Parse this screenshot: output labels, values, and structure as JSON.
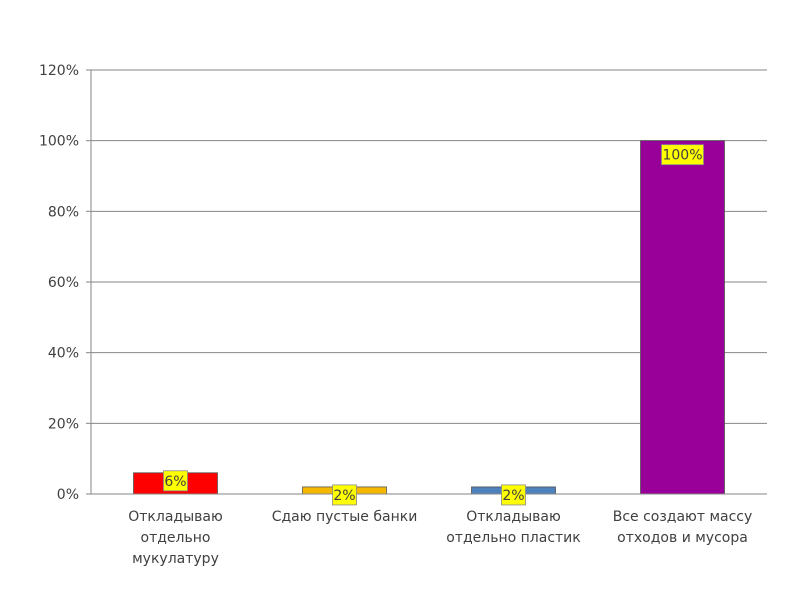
{
  "chart_data": {
    "type": "bar",
    "categories": [
      [
        "Откладываю",
        "отдельно",
        "мукулатуру"
      ],
      [
        "Сдаю пустые банки"
      ],
      [
        "Откладываю",
        "отдельно пластик"
      ],
      [
        "Все создают массу",
        "отходов и мусора"
      ]
    ],
    "values": [
      6,
      2,
      2,
      100
    ],
    "data_labels": [
      "6%",
      "2%",
      "2%",
      "100%"
    ],
    "bar_colors": [
      "#ff0000",
      "#f5b800",
      "#4f81bd",
      "#990099"
    ],
    "data_label_bg": "#ffff00",
    "ylim": [
      0,
      120
    ],
    "yticks": [
      0,
      20,
      40,
      60,
      80,
      100,
      120
    ],
    "ytick_labels": [
      "0%",
      "20%",
      "40%",
      "60%",
      "80%",
      "100%",
      "120%"
    ],
    "grid": true,
    "legend": false
  }
}
